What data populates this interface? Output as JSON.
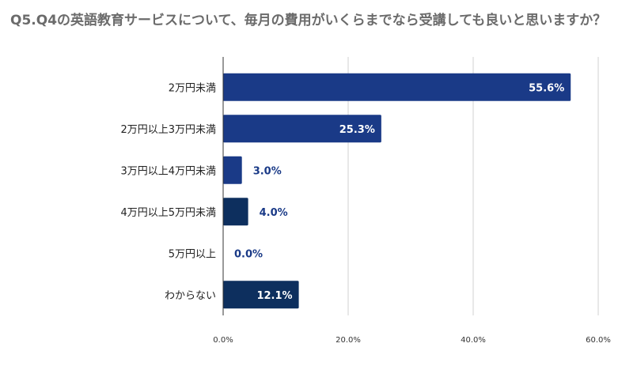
{
  "chart_data": {
    "type": "bar",
    "orientation": "horizontal",
    "title": "Q5.Q4の英語教育サービスについて、毎月の費用がいくらまでなら受講しても良いと思いますか？",
    "categories": [
      "2万円未満",
      "2万円以上3万円未満",
      "3万円以上4万円未満",
      "4万円以上5万円未満",
      "5万円以上",
      "わからない"
    ],
    "values": [
      55.6,
      25.3,
      3.0,
      4.0,
      0.0,
      12.1
    ],
    "data_labels": [
      "55.6%",
      "25.3%",
      "3.0%",
      "4.0%",
      "0.0%",
      "12.1%"
    ],
    "xlim": [
      0,
      60
    ],
    "xticks": [
      0,
      20,
      40,
      60
    ],
    "xtick_labels": [
      "0.0%",
      "20.0%",
      "40.0%",
      "60.0%"
    ],
    "grid": true,
    "legend": "none",
    "bar_colors": [
      "#1a3a87",
      "#1a3a87",
      "#1a3a87",
      "#0d2f5e",
      "#0d2f5e",
      "#0d2f5e"
    ],
    "label_inside_color": "#ffffff",
    "label_outside_color": "#1a3a87",
    "grid_color": "#d0d0d0",
    "axis_color": "#333333"
  }
}
